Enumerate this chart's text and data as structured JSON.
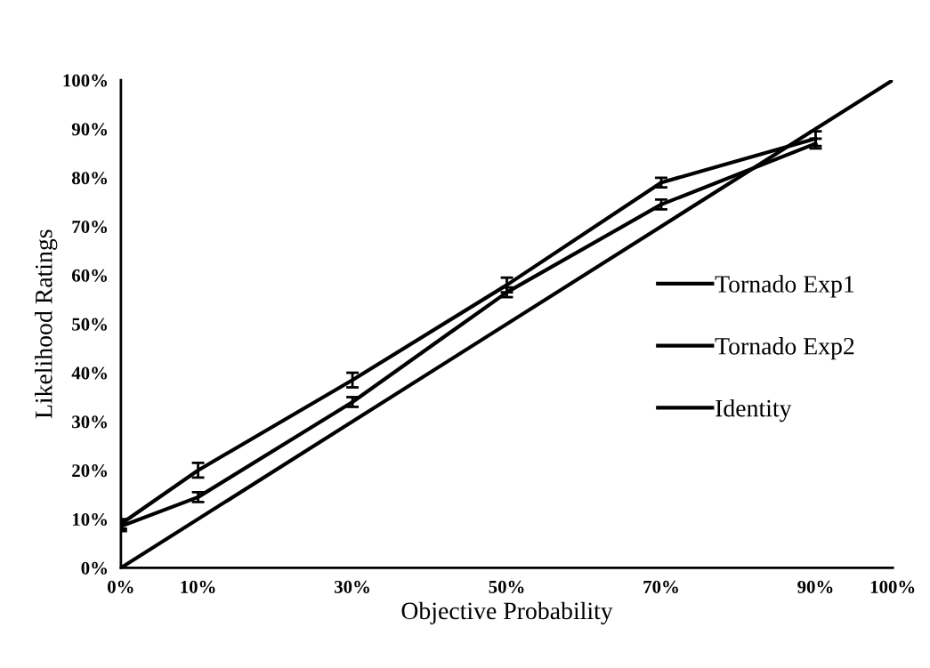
{
  "chart_data": {
    "type": "line",
    "xlabel": "Objective Probability",
    "ylabel": "Likelihood Ratings",
    "xlim": [
      0,
      100
    ],
    "ylim": [
      0,
      100
    ],
    "xticks": [
      {
        "value": 0,
        "label": "0%"
      },
      {
        "value": 10,
        "label": "10%"
      },
      {
        "value": 30,
        "label": "30%"
      },
      {
        "value": 50,
        "label": "50%"
      },
      {
        "value": 70,
        "label": "70%"
      },
      {
        "value": 90,
        "label": "90%"
      },
      {
        "value": 100,
        "label": "100%"
      }
    ],
    "yticks": [
      {
        "value": 0,
        "label": "0%"
      },
      {
        "value": 10,
        "label": "10%"
      },
      {
        "value": 20,
        "label": "20%"
      },
      {
        "value": 30,
        "label": "30%"
      },
      {
        "value": 40,
        "label": "40%"
      },
      {
        "value": 50,
        "label": "50%"
      },
      {
        "value": 60,
        "label": "60%"
      },
      {
        "value": 70,
        "label": "70%"
      },
      {
        "value": 80,
        "label": "80%"
      },
      {
        "value": 90,
        "label": "90%"
      },
      {
        "value": 100,
        "label": "100%"
      }
    ],
    "grid": false,
    "legend": "right",
    "marker": "none",
    "line_style": "solid",
    "series": [
      {
        "name": "Tornado Exp1",
        "color": "#000000",
        "x": [
          0,
          10,
          30,
          50,
          70,
          90
        ],
        "values": [
          9,
          20,
          38.5,
          58,
          79,
          88
        ],
        "errors": [
          1,
          1.5,
          1.5,
          1.5,
          1,
          1.5
        ]
      },
      {
        "name": "Tornado Exp2",
        "color": "#000000",
        "x": [
          0,
          10,
          30,
          50,
          70,
          90
        ],
        "values": [
          8.5,
          14.5,
          34,
          56.5,
          74.5,
          87
        ],
        "errors": [
          1,
          1,
          1,
          1,
          1,
          1
        ]
      },
      {
        "name": "Identity",
        "color": "#000000",
        "x": [
          0,
          100
        ],
        "values": [
          0,
          100
        ]
      }
    ]
  }
}
